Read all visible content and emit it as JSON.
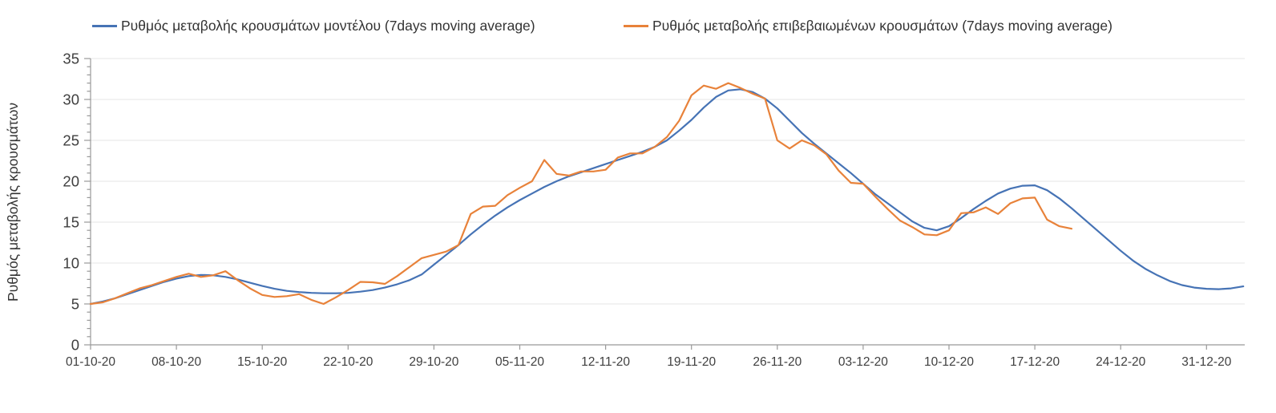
{
  "chart_data": {
    "type": "line",
    "title": "",
    "legend_position": "top",
    "grid": "horizontal-only",
    "background": "#ffffff",
    "axis_color": "#999999",
    "gridline_color": "#e4e4e4",
    "tick_label_color": "#3f3f3f",
    "x_axis": {
      "start_date": "01-10-20",
      "unit": "days",
      "tick_days": [
        0,
        7,
        14,
        21,
        28,
        35,
        42,
        49,
        56,
        63,
        70,
        77,
        84,
        91
      ],
      "tick_labels": [
        "01-10-20",
        "08-10-20",
        "15-10-20",
        "22-10-20",
        "29-10-20",
        "05-11-20",
        "12-11-20",
        "19-11-20",
        "26-11-20",
        "03-12-20",
        "10-12-20",
        "17-12-20",
        "24-12-20",
        "31-12-20"
      ]
    },
    "y_axis": {
      "label": "Ρυθμός μεταβολής κρουσμάτων",
      "min": 0,
      "max": 35,
      "major_tick_step": 5,
      "minor_tick_step": 1,
      "ticks": [
        0,
        5,
        10,
        15,
        20,
        25,
        30,
        35
      ]
    },
    "series": [
      {
        "name": "Ρυθμός μεταβολής κρουσμάτων μοντέλου (7days moving average)",
        "color": "#4673b5",
        "start_day": 0,
        "values": [
          5.0,
          5.3,
          5.7,
          6.2,
          6.7,
          7.2,
          7.7,
          8.1,
          8.4,
          8.55,
          8.5,
          8.3,
          8.0,
          7.6,
          7.2,
          6.85,
          6.6,
          6.45,
          6.35,
          6.3,
          6.3,
          6.35,
          6.5,
          6.7,
          7.0,
          7.4,
          7.9,
          8.6,
          9.8,
          11.0,
          12.2,
          13.5,
          14.7,
          15.8,
          16.8,
          17.7,
          18.5,
          19.3,
          20.0,
          20.6,
          21.1,
          21.6,
          22.1,
          22.6,
          23.1,
          23.6,
          24.2,
          25.0,
          26.2,
          27.5,
          29.0,
          30.3,
          31.1,
          31.25,
          30.9,
          30.1,
          28.9,
          27.4,
          25.9,
          24.6,
          23.4,
          22.2,
          21.0,
          19.7,
          18.4,
          17.3,
          16.2,
          15.1,
          14.3,
          14.0,
          14.5,
          15.5,
          16.6,
          17.6,
          18.5,
          19.1,
          19.45,
          19.5,
          18.9,
          17.9,
          16.7,
          15.4,
          14.1,
          12.8,
          11.5,
          10.3,
          9.3,
          8.5,
          7.8,
          7.3,
          7.0,
          6.85,
          6.8,
          6.9,
          7.15
        ]
      },
      {
        "name": "Ρυθμός μεταβολής επιβεβαιωμένων κρουσμάτων (7days moving average)",
        "color": "#e8823a",
        "start_day": 0,
        "values": [
          5.0,
          5.2,
          5.7,
          6.3,
          6.9,
          7.3,
          7.8,
          8.3,
          8.7,
          8.3,
          8.5,
          9.0,
          7.9,
          6.9,
          6.1,
          5.85,
          5.95,
          6.2,
          5.5,
          5.0,
          5.8,
          6.7,
          7.7,
          7.65,
          7.45,
          8.4,
          9.5,
          10.6,
          11.0,
          11.4,
          12.2,
          16.0,
          16.9,
          17.0,
          18.3,
          19.2,
          20.0,
          22.6,
          20.9,
          20.7,
          21.2,
          21.2,
          21.4,
          22.9,
          23.4,
          23.4,
          24.2,
          25.4,
          27.4,
          30.5,
          31.7,
          31.3,
          32.0,
          31.4,
          30.7,
          30.1,
          25.0,
          24.0,
          25.0,
          24.4,
          23.3,
          21.3,
          19.8,
          19.7,
          18.1,
          16.6,
          15.2,
          14.4,
          13.5,
          13.4,
          14.0,
          16.1,
          16.2,
          16.8,
          16.0,
          17.3,
          17.9,
          18.0,
          15.3,
          14.5,
          14.2
        ]
      }
    ]
  }
}
